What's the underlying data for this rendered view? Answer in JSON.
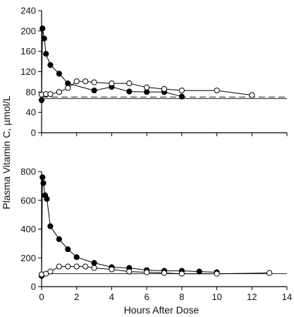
{
  "chart_data": [
    {
      "type": "line",
      "ylabel": "Plasma Vitamin C, µmol/L",
      "xlim": [
        0,
        14
      ],
      "ylim": [
        0,
        240
      ],
      "yticks": [
        0,
        40,
        80,
        120,
        160,
        200,
        240
      ],
      "xticks": [
        0,
        2,
        4,
        6,
        8,
        10,
        12,
        14
      ],
      "show_x_tick_labels": false,
      "reference_lines": [
        {
          "style": "solid",
          "y": 67
        },
        {
          "style": "dashed",
          "y": 70
        }
      ],
      "series": [
        {
          "marker": "filled-circle",
          "x": [
            0,
            0.05,
            0.15,
            0.25,
            0.5,
            1,
            1.5,
            3,
            4,
            5,
            6,
            7,
            8
          ],
          "y": [
            64,
            205,
            185,
            155,
            133,
            116,
            97,
            83,
            90,
            81,
            80,
            80,
            71
          ]
        },
        {
          "marker": "open-circle",
          "x": [
            0,
            0.25,
            0.5,
            1,
            1.5,
            2,
            2.5,
            3,
            4,
            5,
            6,
            7,
            8,
            10,
            12
          ],
          "y": [
            75,
            76,
            76,
            80,
            88,
            101,
            101,
            99,
            97,
            97,
            89,
            86,
            83,
            83,
            74
          ]
        }
      ]
    },
    {
      "type": "line",
      "xlabel": "Hours After Dose",
      "xlim": [
        0,
        14
      ],
      "ylim": [
        0,
        800
      ],
      "yticks": [
        0,
        200,
        400,
        600,
        800
      ],
      "xticks": [
        0,
        2,
        4,
        6,
        8,
        10,
        12,
        14
      ],
      "xtick_labels": [
        "0",
        "2",
        "4",
        "6",
        "8",
        "10",
        "12",
        "14"
      ],
      "reference_lines": [
        {
          "style": "solid",
          "y": 90
        }
      ],
      "series": [
        {
          "marker": "filled-circle",
          "x": [
            0,
            0.05,
            0.1,
            0.2,
            0.3,
            0.5,
            1,
            1.5,
            2,
            3,
            4,
            5,
            6,
            7,
            8,
            9,
            10
          ],
          "y": [
            75,
            760,
            720,
            635,
            610,
            420,
            330,
            260,
            205,
            165,
            135,
            130,
            115,
            110,
            110,
            105,
            100
          ]
        },
        {
          "marker": "open-circle",
          "x": [
            0,
            0.25,
            0.5,
            1,
            1.5,
            2,
            2.5,
            3,
            4,
            5,
            6,
            7,
            8,
            10,
            13
          ],
          "y": [
            85,
            90,
            105,
            140,
            140,
            140,
            140,
            130,
            120,
            105,
            100,
            95,
            90,
            90,
            95
          ]
        }
      ]
    }
  ]
}
